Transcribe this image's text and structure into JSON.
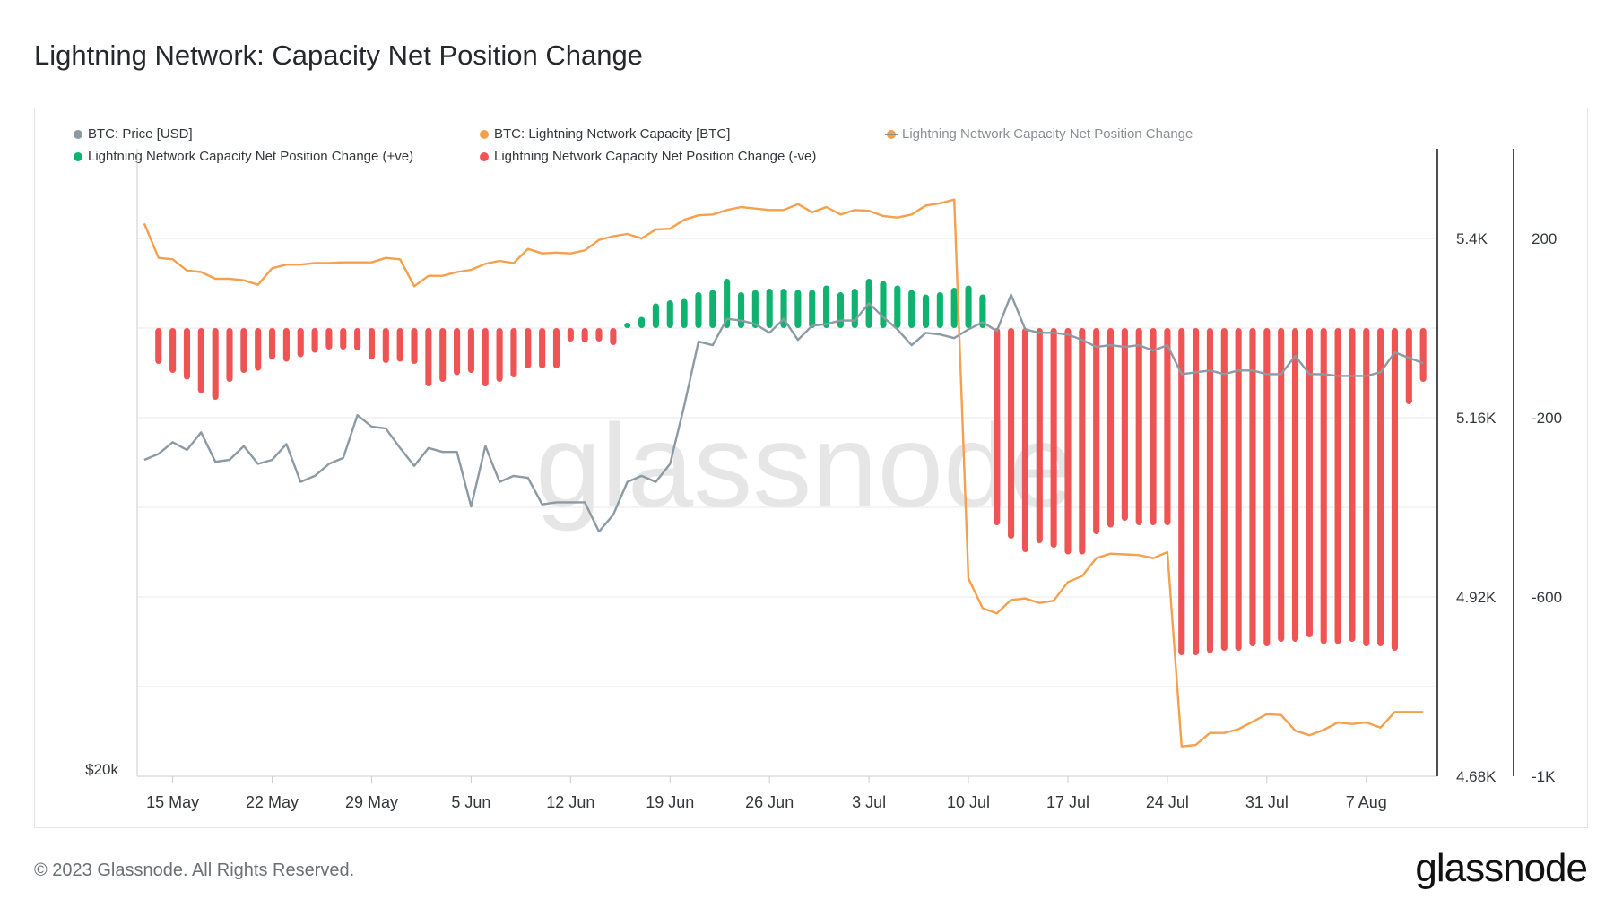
{
  "title": "Lightning Network: Capacity Net Position Change",
  "footer": "© 2023 Glassnode. All Rights Reserved.",
  "logo": "glassnode",
  "watermark": "glassnode",
  "legend": [
    {
      "label": "BTC: Price [USD]",
      "color": "#8c9aa3",
      "struck": false
    },
    {
      "label": "BTC: Lightning Network Capacity [BTC]",
      "color": "#f5a04d",
      "struck": false
    },
    {
      "label": "Lightning Network Capacity Net Position Change",
      "color": "#f5a04d",
      "struck": true
    },
    {
      "label": "Lightning Network Capacity Net Position Change (+ve)",
      "color": "#0fb36f",
      "struck": false
    },
    {
      "label": "Lightning Network Capacity Net Position Change (-ve)",
      "color": "#ef5454",
      "struck": false
    }
  ],
  "chart_data": {
    "type": "bar",
    "x_tick_labels": [
      "15 May",
      "22 May",
      "29 May",
      "5 Jun",
      "12 Jun",
      "19 Jun",
      "26 Jun",
      "3 Jul",
      "10 Jul",
      "17 Jul",
      "24 Jul",
      "31 Jul",
      "7 Aug"
    ],
    "left_axis_labels": [
      "$20k"
    ],
    "capacity_axis": {
      "labels": [
        "5.4K",
        "5.16K",
        "4.92K",
        "4.68K"
      ],
      "range": [
        4680,
        5520
      ]
    },
    "net_change_axis": {
      "labels": [
        "200",
        "-200",
        "-600",
        "-1K"
      ],
      "range": [
        -1000,
        400
      ]
    },
    "price_axis": {
      "range": [
        20000,
        36000
      ],
      "log": true
    },
    "dates": [
      "2023-05-13",
      "2023-05-14",
      "2023-05-15",
      "2023-05-16",
      "2023-05-17",
      "2023-05-18",
      "2023-05-19",
      "2023-05-20",
      "2023-05-21",
      "2023-05-22",
      "2023-05-23",
      "2023-05-24",
      "2023-05-25",
      "2023-05-26",
      "2023-05-27",
      "2023-05-28",
      "2023-05-29",
      "2023-05-30",
      "2023-05-31",
      "2023-06-01",
      "2023-06-02",
      "2023-06-03",
      "2023-06-04",
      "2023-06-05",
      "2023-06-06",
      "2023-06-07",
      "2023-06-08",
      "2023-06-09",
      "2023-06-10",
      "2023-06-11",
      "2023-06-12",
      "2023-06-13",
      "2023-06-14",
      "2023-06-15",
      "2023-06-16",
      "2023-06-17",
      "2023-06-18",
      "2023-06-19",
      "2023-06-20",
      "2023-06-21",
      "2023-06-22",
      "2023-06-23",
      "2023-06-24",
      "2023-06-25",
      "2023-06-26",
      "2023-06-27",
      "2023-06-28",
      "2023-06-29",
      "2023-06-30",
      "2023-07-01",
      "2023-07-02",
      "2023-07-03",
      "2023-07-04",
      "2023-07-05",
      "2023-07-06",
      "2023-07-07",
      "2023-07-08",
      "2023-07-09",
      "2023-07-10",
      "2023-07-11",
      "2023-07-12",
      "2023-07-13",
      "2023-07-14",
      "2023-07-15",
      "2023-07-16",
      "2023-07-17",
      "2023-07-18",
      "2023-07-19",
      "2023-07-20",
      "2023-07-21",
      "2023-07-22",
      "2023-07-23",
      "2023-07-24",
      "2023-07-25",
      "2023-07-26",
      "2023-07-27",
      "2023-07-28",
      "2023-07-29",
      "2023-07-30",
      "2023-07-31",
      "2023-08-01",
      "2023-08-02",
      "2023-08-03",
      "2023-08-04",
      "2023-08-05",
      "2023-08-06",
      "2023-08-07",
      "2023-08-08",
      "2023-08-09",
      "2023-08-10",
      "2023-08-11"
    ],
    "series": [
      {
        "name": "BTC: Price [USD]",
        "axis": "price",
        "color": "#8c9aa3",
        "values": [
          26900,
          27050,
          27350,
          27150,
          27600,
          26850,
          26900,
          27250,
          26800,
          26900,
          27300,
          26350,
          26500,
          26800,
          26950,
          28050,
          27750,
          27700,
          27200,
          26750,
          27200,
          27100,
          27100,
          25750,
          27250,
          26350,
          26500,
          26450,
          25800,
          25850,
          25850,
          25850,
          25150,
          25550,
          26350,
          26500,
          26350,
          26800,
          28300,
          30050,
          29950,
          30700,
          30650,
          30550,
          30300,
          30700,
          30100,
          30500,
          30550,
          30650,
          30650,
          31150,
          30750,
          30400,
          29950,
          30300,
          30250,
          30150,
          30400,
          30600,
          30350,
          31400,
          30400,
          30300,
          30300,
          30250,
          30100,
          29900,
          29950,
          29900,
          29950,
          29800,
          29950,
          29150,
          29200,
          29250,
          29150,
          29250,
          29250,
          29150,
          29150,
          29650,
          29150,
          29150,
          29100,
          29100,
          29100,
          29200,
          29750,
          29600,
          29450
        ]
      },
      {
        "name": "BTC: Lightning Network Capacity [BTC]",
        "axis": "capacity",
        "color": "#f5a04d",
        "values": [
          5420,
          5374,
          5372,
          5357,
          5355,
          5346,
          5346,
          5344,
          5338,
          5360,
          5365,
          5365,
          5367,
          5367,
          5368,
          5368,
          5368,
          5374,
          5372,
          5336,
          5350,
          5350,
          5355,
          5358,
          5366,
          5370,
          5367,
          5386,
          5380,
          5381,
          5380,
          5384,
          5398,
          5403,
          5406,
          5400,
          5412,
          5413,
          5425,
          5431,
          5432,
          5438,
          5442,
          5440,
          5438,
          5438,
          5446,
          5435,
          5442,
          5432,
          5438,
          5437,
          5430,
          5428,
          5432,
          5444,
          5447,
          5452,
          4945,
          4905,
          4898,
          4916,
          4918,
          4912,
          4915,
          4940,
          4948,
          4972,
          4978,
          4977,
          4976,
          4972,
          4980,
          4720,
          4722,
          4738,
          4738,
          4743,
          4753,
          4763,
          4762,
          4741,
          4735,
          4742,
          4752,
          4750,
          4752,
          4745,
          4766,
          4766,
          4766
        ]
      }
    ],
    "net_change": {
      "axis": "net_change",
      "positive_color": "#0fb36f",
      "negative_color": "#ef5454",
      "values": [
        0,
        -80,
        -100,
        -115,
        -145,
        -160,
        -120,
        -100,
        -95,
        -70,
        -75,
        -65,
        -55,
        -48,
        -48,
        -50,
        -70,
        -78,
        -75,
        -80,
        -130,
        -120,
        -105,
        -100,
        -130,
        -120,
        -110,
        -90,
        -90,
        -90,
        -30,
        -32,
        -30,
        -38,
        12,
        25,
        55,
        62,
        65,
        80,
        85,
        110,
        80,
        85,
        88,
        88,
        85,
        85,
        95,
        80,
        88,
        110,
        105,
        95,
        85,
        75,
        80,
        90,
        95,
        75,
        -440,
        -470,
        -500,
        -480,
        -490,
        -505,
        -505,
        -460,
        -445,
        -430,
        -440,
        -440,
        -440,
        -730,
        -730,
        -725,
        -720,
        -720,
        -710,
        -710,
        -700,
        -700,
        -690,
        -705,
        -705,
        -700,
        -710,
        -710,
        -720,
        -170,
        -120
      ]
    }
  },
  "x_axis_label_spacing_note": ""
}
